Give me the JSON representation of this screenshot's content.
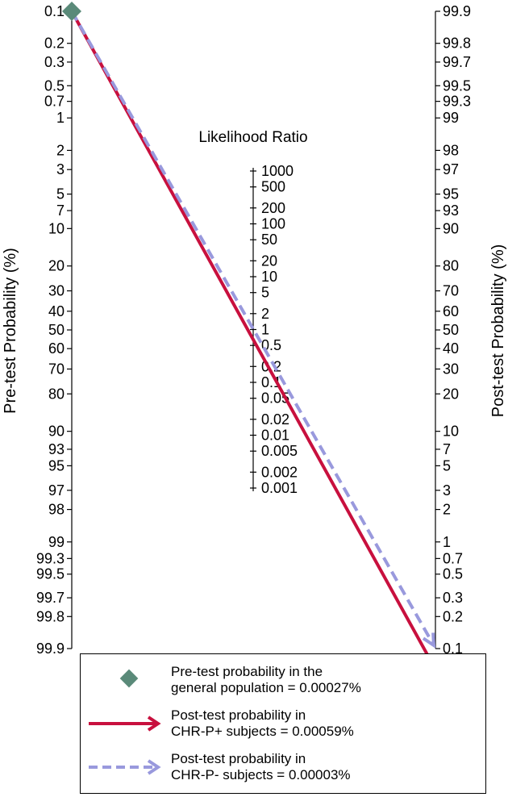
{
  "chart_data": {
    "type": "nomogram",
    "title": "",
    "left_axis": {
      "label": "Pre-test Probability (%)",
      "ticks": [
        "0.1",
        "0.2",
        "0.3",
        "0.5",
        "0.7",
        "1",
        "2",
        "3",
        "5",
        "7",
        "10",
        "20",
        "30",
        "40",
        "50",
        "60",
        "70",
        "80",
        "90",
        "93",
        "95",
        "97",
        "98",
        "99",
        "99.3",
        "99.5",
        "99.7",
        "99.8",
        "99.9"
      ]
    },
    "middle_axis": {
      "label": "Likelihood Ratio",
      "ticks": [
        "1000",
        "500",
        "200",
        "100",
        "50",
        "20",
        "10",
        "5",
        "2",
        "1",
        "0.5",
        "0.2",
        "0.1",
        "0.05",
        "0.02",
        "0.01",
        "0.005",
        "0.002",
        "0.001"
      ]
    },
    "right_axis": {
      "label": "Post-test Probability (%)",
      "ticks": [
        "99.9",
        "99.8",
        "99.7",
        "99.5",
        "99.3",
        "99",
        "98",
        "97",
        "95",
        "93",
        "90",
        "80",
        "70",
        "60",
        "50",
        "40",
        "30",
        "20",
        "10",
        "7",
        "5",
        "3",
        "2",
        "1",
        "0.7",
        "0.5",
        "0.3",
        "0.2",
        "0.1"
      ]
    },
    "series": [
      {
        "name": "Pre-test probability in the general population = 0.00027%",
        "kind": "point",
        "pretest_percent": 0.00027,
        "color": "#5a8a79"
      },
      {
        "name": "Post-test probability in CHR-P+ subjects = 0.00059%",
        "kind": "solid-arrow",
        "pretest_percent": 0.00027,
        "posttest_percent": 0.00059,
        "color": "#c8103e"
      },
      {
        "name": "Post-test probability in CHR-P- subjects = 0.00003%",
        "kind": "dashed-arrow",
        "pretest_percent": 0.00027,
        "posttest_percent": 3e-05,
        "color": "#9999dd"
      }
    ]
  },
  "legend": {
    "items": [
      {
        "line1": "Pre-test probability in the",
        "line2": "general population = 0.00027%"
      },
      {
        "line1": "Post-test probability in",
        "line2": "CHR-P+ subjects = 0.00059%"
      },
      {
        "line1": "Post-test probability in",
        "line2": "CHR-P- subjects = 0.00003%"
      }
    ]
  }
}
